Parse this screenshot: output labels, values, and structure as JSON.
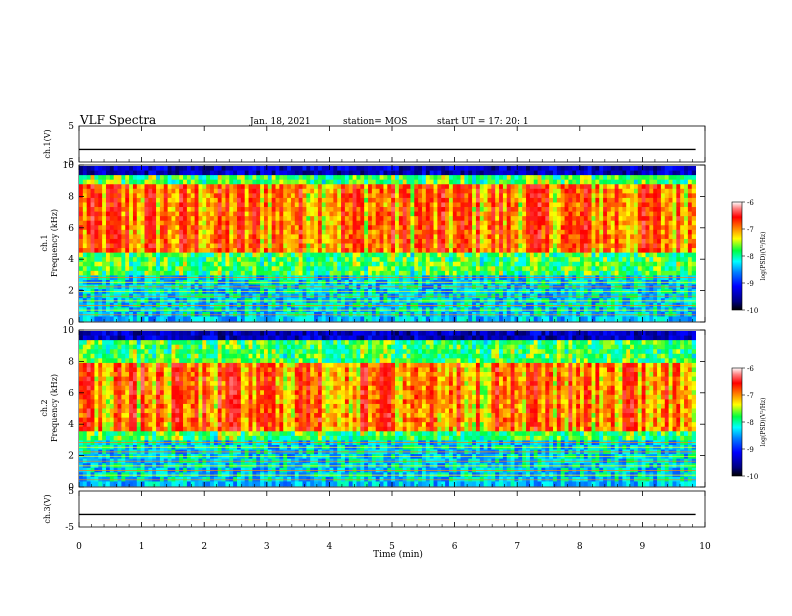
{
  "header": {
    "title": "VLF Spectra",
    "date": "Jan. 18, 2021",
    "station": "station= MOS",
    "start": "start  UT =   17: 20: 1"
  },
  "chart_data": [
    {
      "type": "line",
      "name": "ch1_voltage",
      "ylabel": "ch.1(V)",
      "ylim": [
        -5,
        5
      ],
      "yticks": [
        "5",
        "-5"
      ],
      "xlim": [
        0,
        10
      ],
      "baseline": -1.5
    },
    {
      "type": "heatmap",
      "name": "ch1_spectrogram",
      "ylabel_line1": "ch.1",
      "ylabel_line2": "Frequency (kHz)",
      "ylim": [
        0,
        10
      ],
      "yticks": [
        "0",
        "2",
        "4",
        "6",
        "8",
        "10"
      ],
      "xlim": [
        0,
        9.85
      ],
      "colorbar": {
        "label": "log(PSD)(V²/Hz)",
        "range": [
          -10,
          -6
        ],
        "ticks": [
          "-6",
          "-7",
          "-8",
          "-9",
          "-10"
        ]
      }
    },
    {
      "type": "heatmap",
      "name": "ch2_spectrogram",
      "ylabel_line1": "ch.2",
      "ylabel_line2": "Frequency (kHz)",
      "ylim": [
        0,
        10
      ],
      "yticks": [
        "0",
        "2",
        "4",
        "6",
        "8",
        "10"
      ],
      "xlim": [
        0,
        9.85
      ],
      "colorbar": {
        "label": "log(PSD)(V²/Hz)",
        "range": [
          -10,
          -6
        ],
        "ticks": [
          "-6",
          "-7",
          "-8",
          "-9",
          "-10"
        ]
      }
    },
    {
      "type": "line",
      "name": "ch3_voltage",
      "ylabel": "ch.3(V)",
      "ylim": [
        -5,
        5
      ],
      "yticks": [
        "5",
        "-5"
      ],
      "xlim": [
        0,
        10
      ],
      "baseline": -1.5
    }
  ],
  "xaxis": {
    "label": "Time (min)",
    "ticks": [
      "0",
      "1",
      "2",
      "3",
      "4",
      "5",
      "6",
      "7",
      "8",
      "9",
      "10"
    ]
  }
}
